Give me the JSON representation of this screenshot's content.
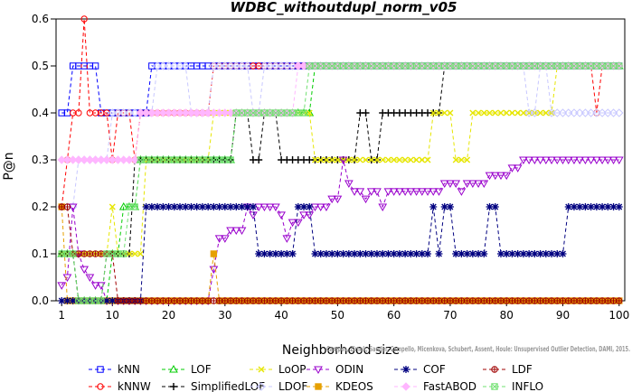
{
  "chart_data": {
    "type": "line",
    "title": "WDBC_withoutdupl_norm_v05",
    "xlabel": "Neighborhood size",
    "ylabel": "P@n",
    "xlim": [
      0,
      101
    ],
    "ylim": [
      0,
      0.6
    ],
    "xticks": [
      1,
      10,
      20,
      30,
      40,
      50,
      60,
      70,
      80,
      90,
      100
    ],
    "yticks": [
      0.0,
      0.1,
      0.2,
      0.3,
      0.4,
      0.5,
      0.6
    ],
    "xtick_labels": [
      "1",
      "10",
      "20",
      "30",
      "40",
      "50",
      "60",
      "70",
      "80",
      "90",
      "100"
    ],
    "ytick_labels": [
      "0.0",
      "0.1",
      "0.2",
      "0.3",
      "0.4",
      "0.5",
      "0.6"
    ],
    "grid": false,
    "legend_position": "bottom",
    "watermark": "Campos, Zimek, Sander, Campello, Micenkova, Schubert, Assent, Houle: Unsupervised Outlier Detection, DAMI, 2015.",
    "series": [
      {
        "name": "kNN",
        "color": "#0000ff",
        "marker": "square",
        "values": [
          {
            "from": 1,
            "to": 2,
            "y": 0.4
          },
          {
            "from": 3,
            "to": 7,
            "y": 0.5
          },
          {
            "from": 8,
            "to": 16,
            "y": 0.4
          },
          {
            "from": 17,
            "to": 100,
            "y": 0.5
          }
        ]
      },
      {
        "name": "kNNW",
        "color": "#ff0000",
        "marker": "circle",
        "values": [
          {
            "from": 1,
            "to": 1,
            "y": 0.2
          },
          {
            "from": 2,
            "to": 2,
            "y": 0.3
          },
          {
            "from": 3,
            "to": 4,
            "y": 0.4
          },
          {
            "from": 5,
            "to": 5,
            "y": 0.6
          },
          {
            "from": 6,
            "to": 9,
            "y": 0.4
          },
          {
            "from": 10,
            "to": 10,
            "y": 0.3
          },
          {
            "from": 11,
            "to": 13,
            "y": 0.4
          },
          {
            "from": 14,
            "to": 14,
            "y": 0.3
          },
          {
            "from": 15,
            "to": 27,
            "y": 0.4
          },
          {
            "from": 28,
            "to": 95,
            "y": 0.5
          },
          {
            "from": 96,
            "to": 96,
            "y": 0.4
          },
          {
            "from": 97,
            "to": 100,
            "y": 0.5
          }
        ]
      },
      {
        "name": "LOF",
        "color": "#00cc00",
        "marker": "triangle-up",
        "values": [
          {
            "from": 1,
            "to": 3,
            "y": 0.1
          },
          {
            "from": 4,
            "to": 9,
            "y": 0.0
          },
          {
            "from": 10,
            "to": 11,
            "y": 0.1
          },
          {
            "from": 12,
            "to": 14,
            "y": 0.2
          },
          {
            "from": 15,
            "to": 31,
            "y": 0.3
          },
          {
            "from": 32,
            "to": 45,
            "y": 0.4
          },
          {
            "from": 46,
            "to": 100,
            "y": 0.5
          }
        ]
      },
      {
        "name": "SimplifiedLOF",
        "color": "#000000",
        "marker": "plus",
        "values": [
          {
            "from": 1,
            "to": 3,
            "y": 0.1
          },
          {
            "from": 4,
            "to": 8,
            "y": 0.0
          },
          {
            "from": 9,
            "to": 13,
            "y": 0.1
          },
          {
            "from": 14,
            "to": 31,
            "y": 0.3
          },
          {
            "from": 32,
            "to": 34,
            "y": 0.4
          },
          {
            "from": 35,
            "to": 36,
            "y": 0.3
          },
          {
            "from": 37,
            "to": 39,
            "y": 0.4
          },
          {
            "from": 40,
            "to": 53,
            "y": 0.3
          },
          {
            "from": 54,
            "to": 55,
            "y": 0.4
          },
          {
            "from": 56,
            "to": 57,
            "y": 0.3
          },
          {
            "from": 58,
            "to": 68,
            "y": 0.4
          },
          {
            "from": 69,
            "to": 100,
            "y": 0.5
          }
        ]
      },
      {
        "name": "LoOP",
        "color": "#e6e600",
        "marker": "x",
        "values": [
          {
            "from": 1,
            "to": 9,
            "y": 0.1
          },
          {
            "from": 10,
            "to": 10,
            "y": 0.2
          },
          {
            "from": 11,
            "to": 15,
            "y": 0.1
          },
          {
            "from": 16,
            "to": 27,
            "y": 0.3
          },
          {
            "from": 28,
            "to": 45,
            "y": 0.4
          },
          {
            "from": 46,
            "to": 66,
            "y": 0.3
          },
          {
            "from": 67,
            "to": 70,
            "y": 0.4
          },
          {
            "from": 71,
            "to": 73,
            "y": 0.3
          },
          {
            "from": 74,
            "to": 88,
            "y": 0.4
          },
          {
            "from": 89,
            "to": 100,
            "y": 0.5
          }
        ]
      },
      {
        "name": "LDOF",
        "color": "#c8c8ff",
        "marker": "diamond",
        "values": [
          {
            "from": 1,
            "to": 3,
            "y": 0.2
          },
          {
            "from": 4,
            "to": 9,
            "y": 0.3
          },
          {
            "from": 10,
            "to": 17,
            "y": 0.4
          },
          {
            "from": 18,
            "to": 23,
            "y": 0.5
          },
          {
            "from": 24,
            "to": 27,
            "y": 0.4
          },
          {
            "from": 28,
            "to": 34,
            "y": 0.5
          },
          {
            "from": 35,
            "to": 36,
            "y": 0.4
          },
          {
            "from": 37,
            "to": 83,
            "y": 0.5
          },
          {
            "from": 84,
            "to": 85,
            "y": 0.4
          },
          {
            "from": 86,
            "to": 87,
            "y": 0.5
          },
          {
            "from": 88,
            "to": 100,
            "y": 0.4
          }
        ]
      },
      {
        "name": "ODIN",
        "color": "#9900cc",
        "marker": "triangle-down",
        "values": [
          {
            "x": 1,
            "y": 0.033
          },
          {
            "x": 2,
            "y": 0.05
          },
          {
            "x": 3,
            "y": 0.2
          },
          {
            "x": 4,
            "y": 0.1
          },
          {
            "x": 5,
            "y": 0.067
          },
          {
            "x": 6,
            "y": 0.05
          },
          {
            "x": 7,
            "y": 0.033
          },
          {
            "x": 8,
            "y": 0.033
          },
          {
            "x": 9,
            "y": 0.0
          },
          {
            "x": 10,
            "y": 0.0
          },
          {
            "from": 11,
            "to": 27,
            "y": 0.0
          },
          {
            "x": 28,
            "y": 0.067
          },
          {
            "x": 29,
            "y": 0.133
          },
          {
            "x": 30,
            "y": 0.133
          },
          {
            "x": 31,
            "y": 0.15
          },
          {
            "x": 32,
            "y": 0.15
          },
          {
            "x": 33,
            "y": 0.15
          },
          {
            "x": 34,
            "y": 0.2
          },
          {
            "x": 35,
            "y": 0.183
          },
          {
            "x": 36,
            "y": 0.2
          },
          {
            "x": 37,
            "y": 0.2
          },
          {
            "x": 38,
            "y": 0.2
          },
          {
            "x": 39,
            "y": 0.2
          },
          {
            "x": 40,
            "y": 0.183
          },
          {
            "x": 41,
            "y": 0.133
          },
          {
            "x": 42,
            "y": 0.167
          },
          {
            "x": 43,
            "y": 0.167
          },
          {
            "x": 44,
            "y": 0.183
          },
          {
            "x": 45,
            "y": 0.183
          },
          {
            "x": 46,
            "y": 0.2
          },
          {
            "x": 47,
            "y": 0.2
          },
          {
            "x": 48,
            "y": 0.2
          },
          {
            "x": 49,
            "y": 0.217
          },
          {
            "x": 50,
            "y": 0.217
          },
          {
            "x": 51,
            "y": 0.3
          },
          {
            "x": 52,
            "y": 0.25
          },
          {
            "x": 53,
            "y": 0.233
          },
          {
            "x": 54,
            "y": 0.233
          },
          {
            "x": 55,
            "y": 0.217
          },
          {
            "x": 56,
            "y": 0.233
          },
          {
            "x": 57,
            "y": 0.233
          },
          {
            "x": 58,
            "y": 0.2
          },
          {
            "from": 59,
            "to": 68,
            "y": 0.233
          },
          {
            "from": 69,
            "to": 71,
            "y": 0.25
          },
          {
            "x": 72,
            "y": 0.233
          },
          {
            "from": 73,
            "to": 76,
            "y": 0.25
          },
          {
            "from": 77,
            "to": 80,
            "y": 0.267
          },
          {
            "from": 81,
            "to": 82,
            "y": 0.283
          },
          {
            "from": 83,
            "to": 100,
            "y": 0.3
          }
        ]
      },
      {
        "name": "KDEOS",
        "color": "#e6a000",
        "marker": "square-filled",
        "values": [
          {
            "x": 1,
            "y": 0.2
          },
          {
            "from": 2,
            "to": 27,
            "y": 0.0
          },
          {
            "x": 28,
            "y": 0.1
          },
          {
            "from": 29,
            "to": 100,
            "y": 0.0
          }
        ]
      },
      {
        "name": "COF",
        "color": "#000080",
        "marker": "asterisk",
        "values": [
          {
            "from": 1,
            "to": 15,
            "y": 0.0
          },
          {
            "from": 16,
            "to": 35,
            "y": 0.2
          },
          {
            "from": 36,
            "to": 42,
            "y": 0.1
          },
          {
            "from": 43,
            "to": 45,
            "y": 0.2
          },
          {
            "from": 46,
            "to": 66,
            "y": 0.1
          },
          {
            "x": 67,
            "y": 0.2
          },
          {
            "x": 68,
            "y": 0.1
          },
          {
            "from": 69,
            "to": 70,
            "y": 0.2
          },
          {
            "from": 71,
            "to": 76,
            "y": 0.1
          },
          {
            "from": 77,
            "to": 78,
            "y": 0.2
          },
          {
            "from": 79,
            "to": 90,
            "y": 0.1
          },
          {
            "from": 91,
            "to": 100,
            "y": 0.2
          }
        ]
      },
      {
        "name": "FastABOD",
        "color": "#ffb6ff",
        "marker": "diamond-filled",
        "values": [
          {
            "from": 1,
            "to": 14,
            "y": 0.3
          },
          {
            "from": 15,
            "to": 42,
            "y": 0.4
          },
          {
            "from": 43,
            "to": 100,
            "y": 0.5
          }
        ]
      },
      {
        "name": "LDF",
        "color": "#a00000",
        "marker": "circle-plus",
        "values": [
          {
            "x": 1,
            "y": 0.2
          },
          {
            "x": 2,
            "y": 0.2
          },
          {
            "from": 3,
            "to": 10,
            "y": 0.1
          },
          {
            "from": 11,
            "to": 27,
            "y": 0.0
          },
          {
            "from": 28,
            "to": 100,
            "y": 0.0
          }
        ]
      },
      {
        "name": "INFLO",
        "color": "#70e070",
        "marker": "square-x",
        "values": [
          {
            "from": 1,
            "to": 3,
            "y": 0.1
          },
          {
            "from": 4,
            "to": 8,
            "y": 0.0
          },
          {
            "from": 9,
            "to": 12,
            "y": 0.1
          },
          {
            "from": 13,
            "to": 14,
            "y": 0.2
          },
          {
            "from": 15,
            "to": 31,
            "y": 0.3
          },
          {
            "from": 32,
            "to": 44,
            "y": 0.4
          },
          {
            "from": 45,
            "to": 100,
            "y": 0.5
          }
        ]
      }
    ]
  }
}
